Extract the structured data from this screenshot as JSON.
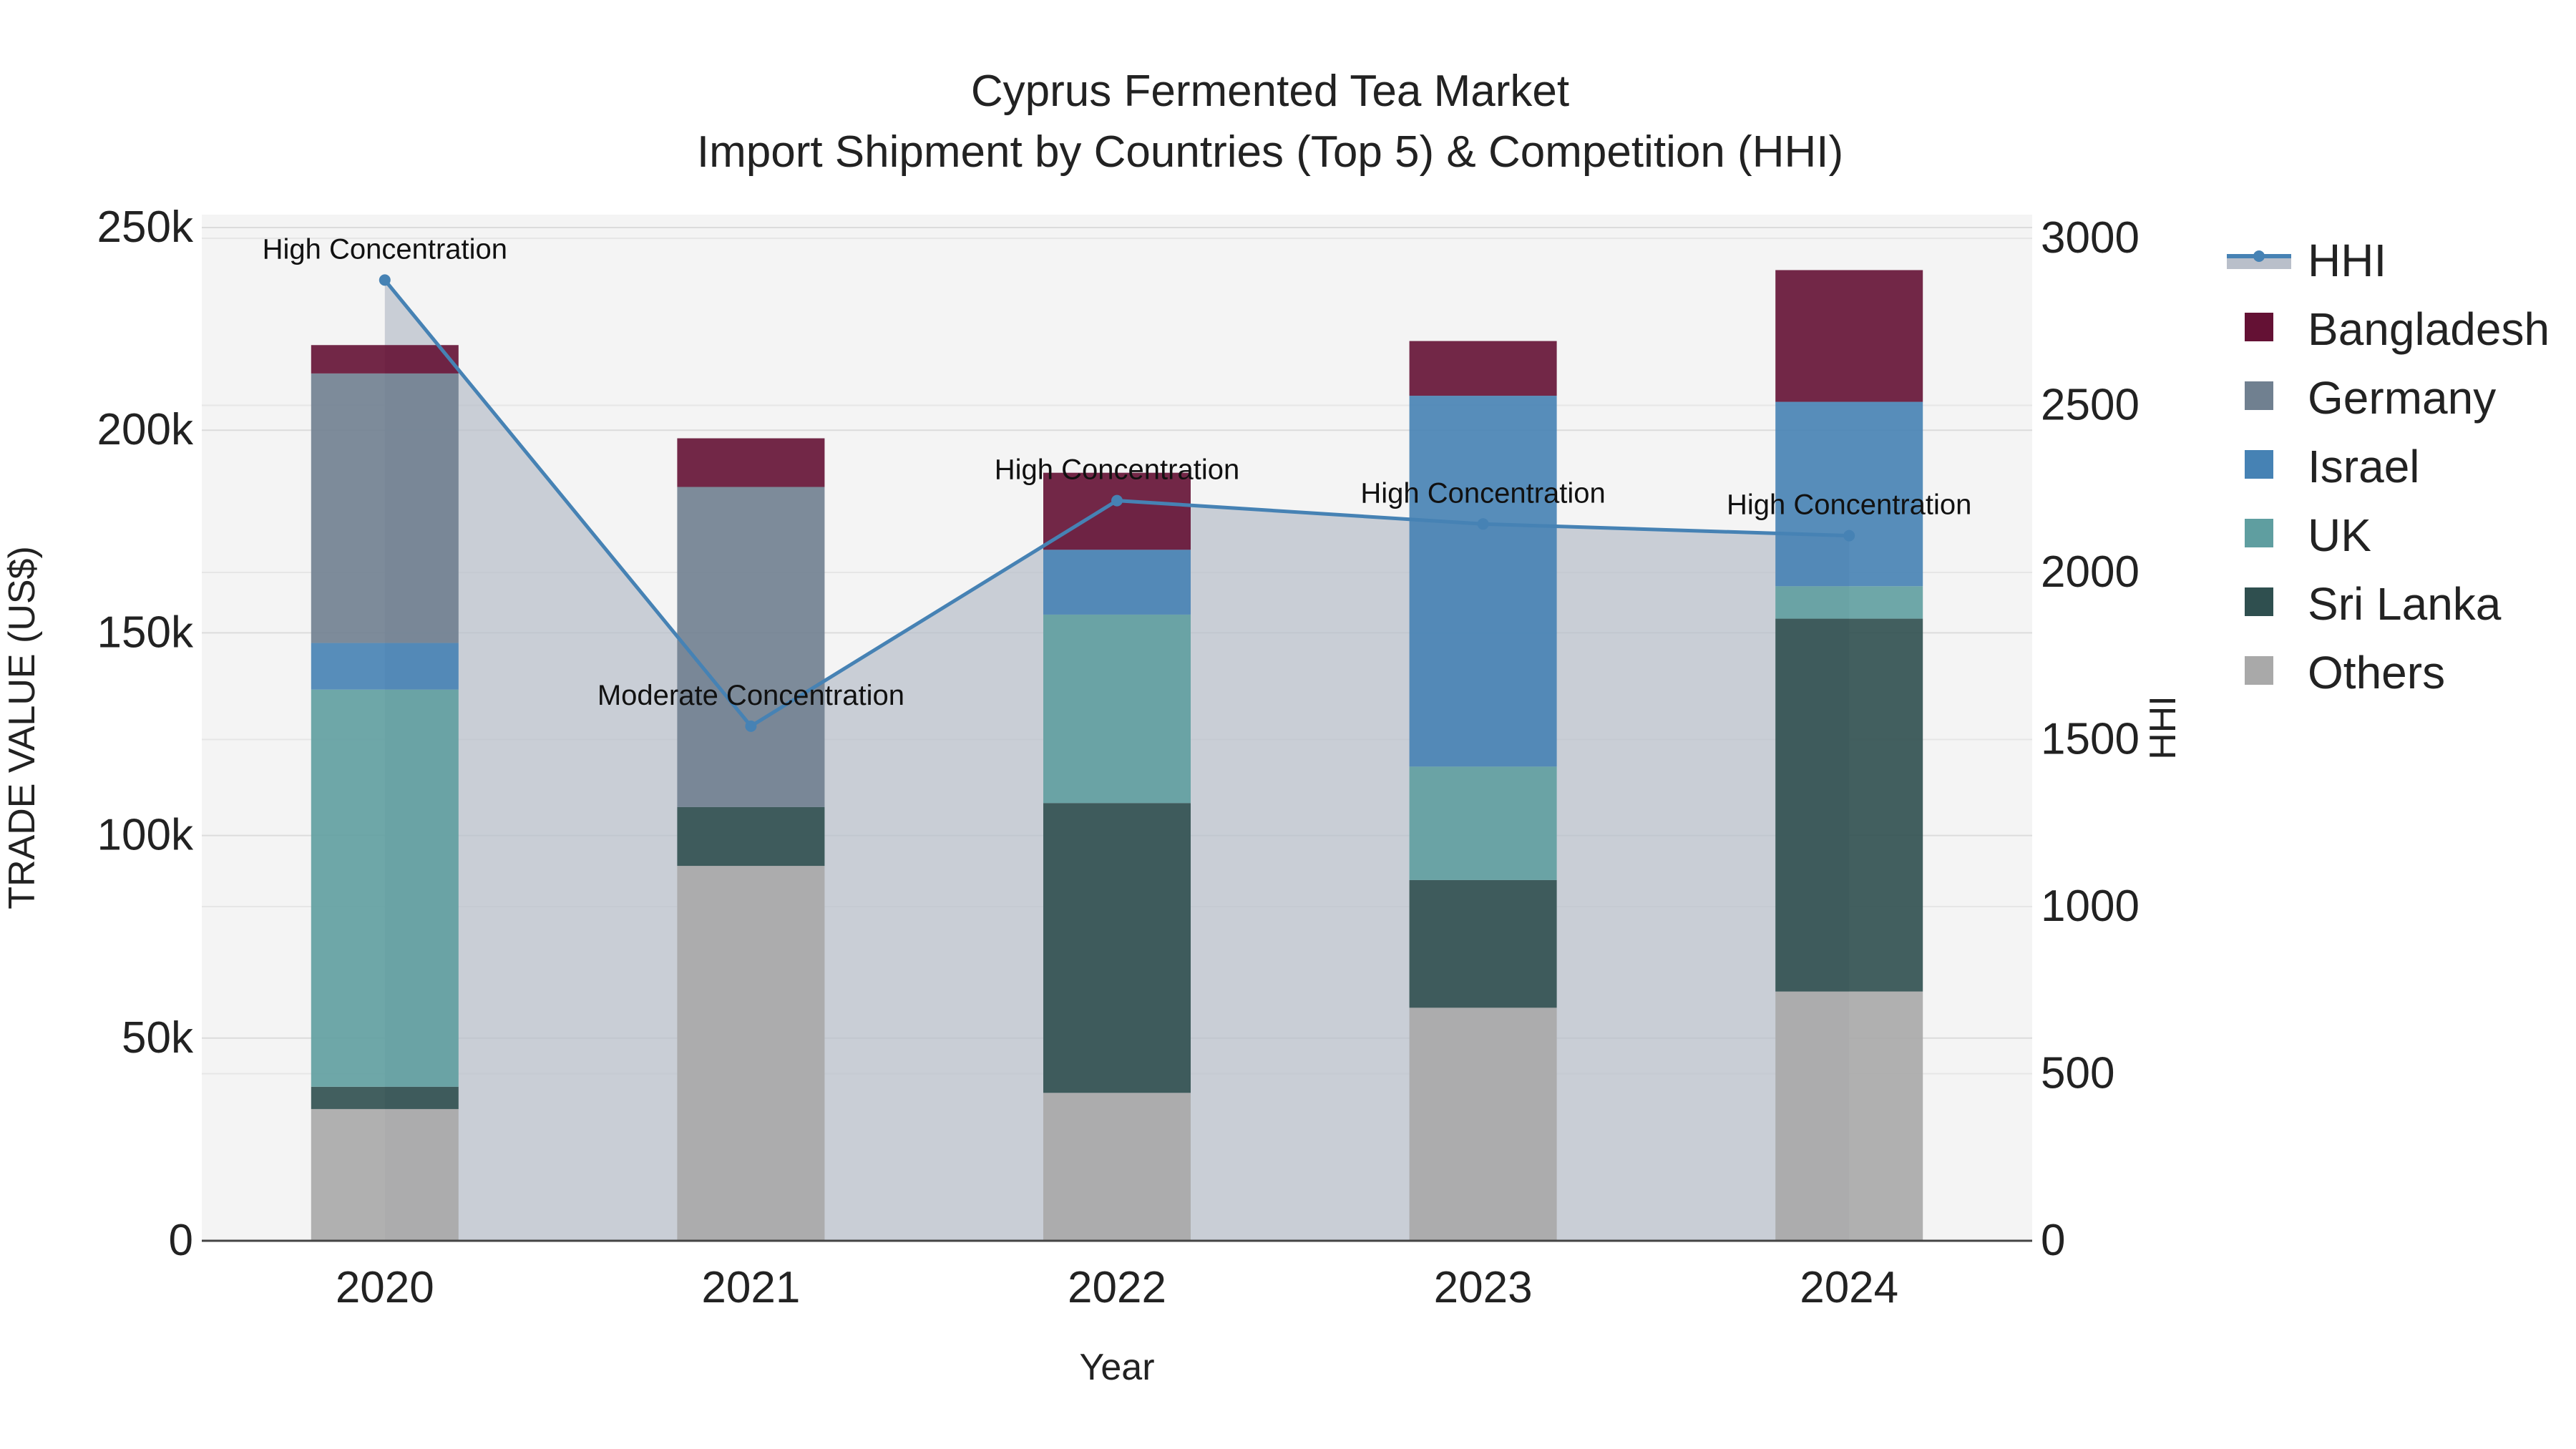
{
  "chart_data": {
    "type": "bar",
    "title": "Cyprus Fermented Tea Market",
    "subtitle": "Import Shipment by Countries (Top 5) & Competition (HHI)",
    "xlabel": "Year",
    "ylabel": "TRADE VALUE (US$)",
    "y2label": "HHI",
    "categories": [
      "2020",
      "2021",
      "2022",
      "2023",
      "2024"
    ],
    "ylim": [
      0,
      250000
    ],
    "y2lim": [
      0,
      3000
    ],
    "yticks": [
      {
        "value": 0,
        "label": "0"
      },
      {
        "value": 50000,
        "label": "50k"
      },
      {
        "value": 100000,
        "label": "100k"
      },
      {
        "value": 150000,
        "label": "150k"
      },
      {
        "value": 200000,
        "label": "200k"
      },
      {
        "value": 250000,
        "label": "250k"
      }
    ],
    "y2ticks": [
      {
        "value": 0,
        "label": "0"
      },
      {
        "value": 500,
        "label": "500"
      },
      {
        "value": 1000,
        "label": "1000"
      },
      {
        "value": 1500,
        "label": "1500"
      },
      {
        "value": 2000,
        "label": "2000"
      },
      {
        "value": 2500,
        "label": "2500"
      },
      {
        "value": 3000,
        "label": "3000"
      }
    ],
    "series": [
      {
        "name": "Others",
        "color": "#a9a9a9",
        "values": [
          32500,
          92500,
          36500,
          57500,
          61500
        ]
      },
      {
        "name": "Sri Lanka",
        "color": "#2f4f4f",
        "values": [
          5500,
          14500,
          71500,
          31500,
          92000
        ]
      },
      {
        "name": "UK",
        "color": "#5f9ea0",
        "values": [
          98000,
          0,
          46500,
          28000,
          8000
        ]
      },
      {
        "name": "Israel",
        "color": "#4682b4",
        "values": [
          11500,
          0,
          16000,
          91500,
          45500
        ]
      },
      {
        "name": "Germany",
        "color": "#708090",
        "values": [
          66500,
          79000,
          0,
          0,
          0
        ]
      },
      {
        "name": "Bangladesh",
        "color": "#641134",
        "values": [
          7000,
          12000,
          19000,
          13500,
          32500
        ]
      }
    ],
    "hhi": {
      "name": "HHI",
      "color": "#4682b4",
      "values": [
        2875,
        1540,
        2215,
        2145,
        2110
      ],
      "annotations": [
        "High Concentration",
        "Moderate Concentration",
        "High Concentration",
        "High Concentration",
        "High Concentration"
      ]
    },
    "legend_order": [
      "HHI",
      "Bangladesh",
      "Germany",
      "Israel",
      "UK",
      "Sri Lanka",
      "Others"
    ],
    "legend_position": "right"
  }
}
